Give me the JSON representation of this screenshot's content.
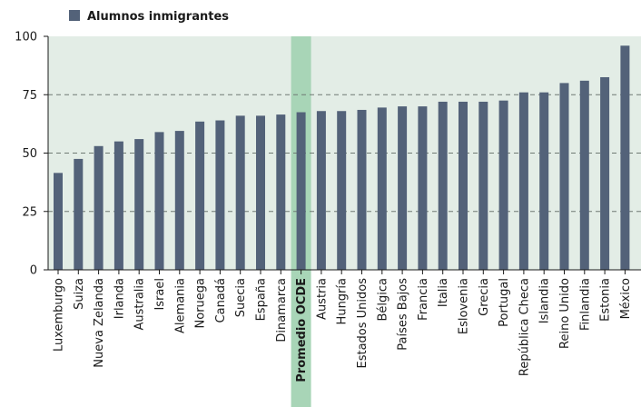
{
  "chart_data": {
    "type": "bar",
    "title": "",
    "xlabel": "",
    "ylabel": "",
    "ylim": [
      0,
      100
    ],
    "yticks": [
      0,
      25,
      50,
      75,
      100
    ],
    "grid": "dashed horizontal at 25 intervals",
    "legend": {
      "position": "top-left",
      "entries": [
        "Alumnos inmigrantes"
      ]
    },
    "highlight_category": "Promedio OCDE",
    "categories": [
      "Luxemburgo",
      "Suiza",
      "Nueva Zelanda",
      "Irlanda",
      "Australia",
      "Israel",
      "Alemania",
      "Noruega",
      "Canadá",
      "Suecia",
      "España",
      "Dinamarca",
      "Promedio OCDE",
      "Austria",
      "Hungría",
      "Estados Unidos",
      "Bélgica",
      "Países Bajos",
      "Francia",
      "Italia",
      "Eslovenia",
      "Grecia",
      "Portugal",
      "República Checa",
      "Islandia",
      "Reino Unido",
      "Finlandia",
      "Estonia",
      "México"
    ],
    "series": [
      {
        "name": "Alumnos inmigrantes",
        "values": [
          41.5,
          47.5,
          53,
          55,
          56,
          59,
          59.5,
          63.5,
          64,
          66,
          66,
          66.5,
          67.5,
          68,
          68,
          68.5,
          69.5,
          70,
          70,
          72,
          72,
          72,
          72.5,
          76,
          76,
          80,
          81,
          82.5,
          96
        ]
      }
    ]
  },
  "colors": {
    "bar": "#536279",
    "plot_background": "#e3ede6",
    "highlight_band": "#a8d5b7",
    "grid": "#6f7a73",
    "axis": "#1a1a1a"
  }
}
